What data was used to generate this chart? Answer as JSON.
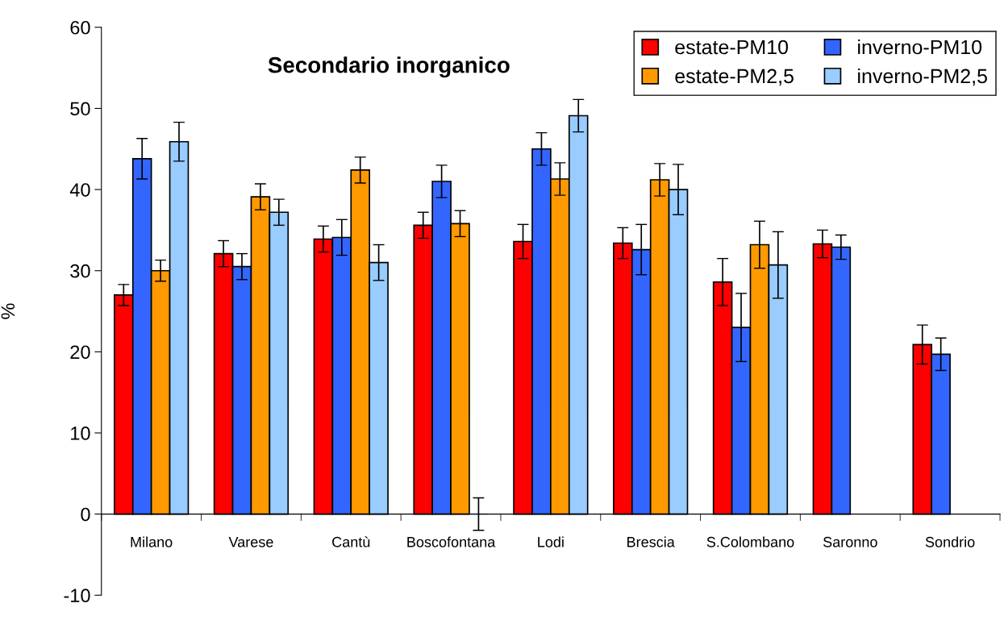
{
  "chart_data": {
    "type": "bar",
    "title": "Secondario inorganico",
    "ylabel": "%",
    "categories": [
      "Milano",
      "Varese",
      "Cantù",
      "Boscofontana",
      "Lodi",
      "Brescia",
      "S.Colombano",
      "Saronno",
      "Sondrio"
    ],
    "series": [
      {
        "name": "estate-PM10",
        "color": "#ff0000",
        "values": [
          27.0,
          32.1,
          33.9,
          35.6,
          33.6,
          33.4,
          28.6,
          33.3,
          20.9
        ],
        "errors": [
          1.3,
          1.6,
          1.6,
          1.6,
          2.1,
          1.9,
          2.9,
          1.7,
          2.4
        ]
      },
      {
        "name": "inverno-PM10",
        "color": "#3366ff",
        "values": [
          43.8,
          30.5,
          34.1,
          41.0,
          45.0,
          32.6,
          23.0,
          32.9,
          19.7
        ],
        "errors": [
          2.5,
          1.6,
          2.2,
          2.0,
          2.0,
          3.1,
          4.2,
          1.5,
          2.0
        ]
      },
      {
        "name": "estate-PM2,5",
        "color": "#ff9900",
        "values": [
          30.0,
          39.1,
          42.4,
          35.8,
          41.3,
          41.2,
          33.2,
          null,
          null
        ],
        "errors": [
          1.3,
          1.6,
          1.6,
          1.6,
          2.0,
          2.0,
          2.9,
          null,
          null
        ]
      },
      {
        "name": "inverno-PM2,5",
        "color": "#99ccff",
        "values": [
          45.9,
          37.2,
          31.0,
          0,
          49.1,
          40.0,
          30.7,
          null,
          null
        ],
        "errors": [
          2.4,
          1.6,
          2.2,
          2.0,
          2.0,
          3.1,
          4.1,
          null,
          null
        ]
      }
    ],
    "ylim": [
      -10,
      60
    ],
    "yticks": [
      -10,
      0,
      10,
      20,
      30,
      40,
      50,
      60
    ],
    "grid": false,
    "legend": "top right"
  }
}
